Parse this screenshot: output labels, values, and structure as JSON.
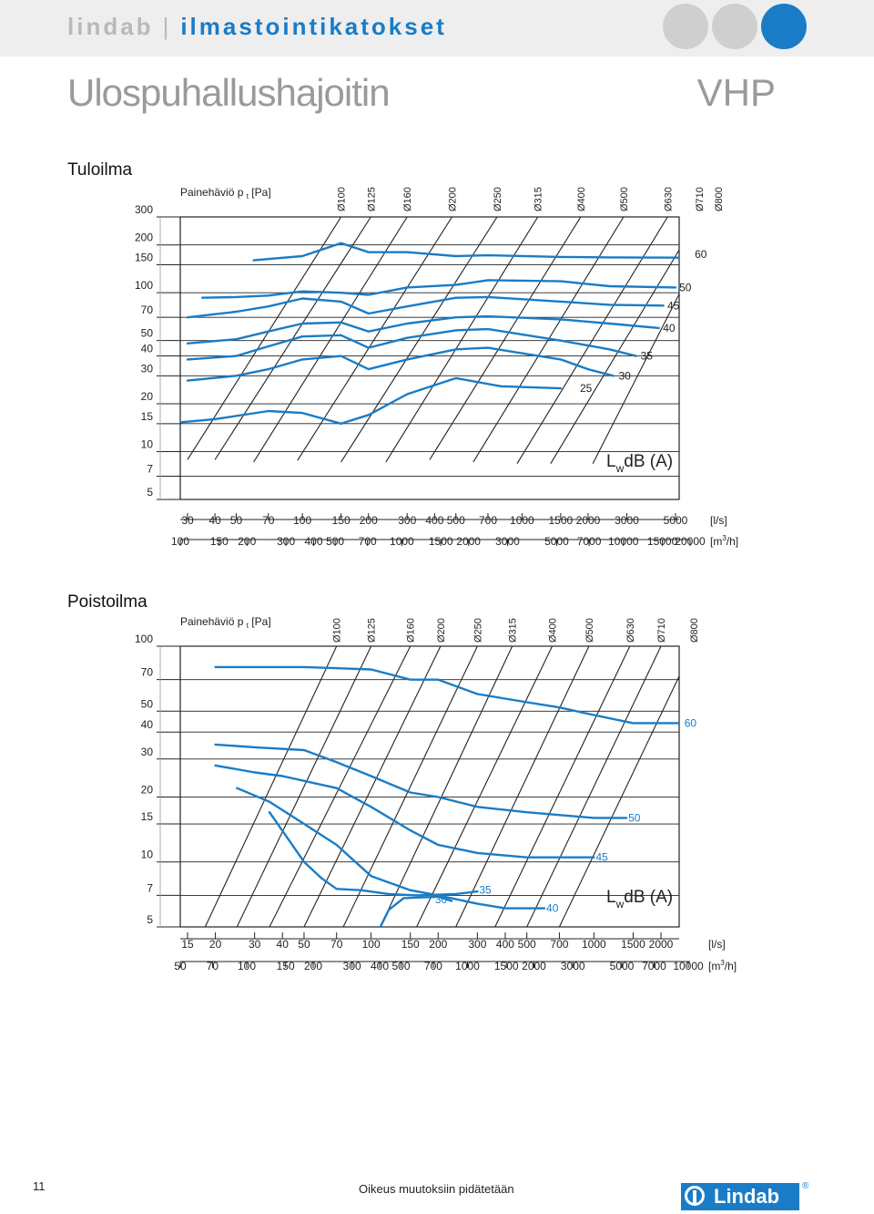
{
  "header": {
    "brand": "lindab",
    "separator": "|",
    "subtitle": "ilmastointikatokset",
    "accent_color": "#1a7cc6",
    "circle_colors": [
      "#cfcfcf",
      "#cfcfcf",
      "#1a7cc6"
    ]
  },
  "page_title": "Ulospuhallushajoitin",
  "model": "VHP",
  "footer": {
    "page_number": "11",
    "disclaimer": "Oikeus muutoksiin pidätetään",
    "logo_text": "Lindab",
    "registered": "®"
  },
  "chart_data": [
    {
      "type": "line",
      "section_title": "Tuloilma",
      "ylabel": "Painehäviö p",
      "ylabel_sub": "t",
      "ylabel_unit": "[Pa]",
      "y_scale": "log",
      "ylim": [
        5,
        300
      ],
      "yticks": [
        5,
        7,
        10,
        15,
        20,
        30,
        40,
        50,
        70,
        100,
        150,
        200,
        300
      ],
      "x_scale": "log",
      "xlim_ls": [
        28,
        6500
      ],
      "xunit1": "[l/s]",
      "xticks_ls": [
        30,
        40,
        50,
        70,
        100,
        150,
        200,
        300,
        400,
        500,
        700,
        1000,
        1500,
        2000,
        3000,
        5000
      ],
      "xunit2_label": "[m",
      "xunit2_sup": "3",
      "xunit2_end": "/h]",
      "xticks_m3h": [
        100,
        150,
        200,
        300,
        400,
        500,
        700,
        1000,
        1500,
        2000,
        3000,
        5000,
        7000,
        10000,
        15000,
        20000
      ],
      "grid": true,
      "sound_label": {
        "main": "L",
        "sub": "w",
        "rest": "dB (A)"
      },
      "sizes": [
        {
          "label": "Ø100",
          "p": [
            [
              30,
              8.9
            ],
            [
              150,
              300
            ]
          ]
        },
        {
          "label": "Ø125",
          "p": [
            [
              40,
              8.9
            ],
            [
              205,
              300
            ]
          ]
        },
        {
          "label": "Ø160",
          "p": [
            [
              60,
              8.6
            ],
            [
              300,
              300
            ]
          ]
        },
        {
          "label": "Ø200",
          "p": [
            [
              95,
              8.8
            ],
            [
              480,
              300
            ]
          ]
        },
        {
          "label": "Ø250",
          "p": [
            [
              150,
              8.6
            ],
            [
              770,
              300
            ]
          ]
        },
        {
          "label": "Ø315",
          "p": [
            [
              240,
              8.6
            ],
            [
              1180,
              300
            ]
          ]
        },
        {
          "label": "Ø400",
          "p": [
            [
              380,
              8.9
            ],
            [
              1850,
              300
            ]
          ]
        },
        {
          "label": "Ø500",
          "p": [
            [
              600,
              8.6
            ],
            [
              2900,
              300
            ]
          ]
        },
        {
          "label": "Ø630",
          "p": [
            [
              950,
              8.4
            ],
            [
              4600,
              300
            ]
          ]
        },
        {
          "label": "Ø710",
          "p": [
            [
              1350,
              8.4
            ],
            [
              6400,
              300
            ]
          ]
        },
        {
          "label": "Ø800",
          "p": [
            [
              2100,
              8.4
            ],
            [
              6500,
              180
            ]
          ]
        }
      ],
      "series": [
        {
          "name": "25",
          "points": [
            [
              28,
              15.3
            ],
            [
              40,
              16.0
            ],
            [
              70,
              18.0
            ],
            [
              100,
              17.5
            ],
            [
              150,
              15.0
            ],
            [
              200,
              17.0
            ],
            [
              300,
              23.0
            ],
            [
              500,
              29.0
            ],
            [
              800,
              25.8
            ],
            [
              1500,
              25.0
            ]
          ],
          "label_at": [
            1800,
            25
          ]
        },
        {
          "name": "30",
          "points": [
            [
              30,
              28.0
            ],
            [
              50,
              30.0
            ],
            [
              70,
              33.0
            ],
            [
              100,
              38.0
            ],
            [
              150,
              40.0
            ],
            [
              200,
              33.0
            ],
            [
              300,
              38.0
            ],
            [
              500,
              44.0
            ],
            [
              700,
              45.0
            ],
            [
              1500,
              38.0
            ],
            [
              2000,
              33.0
            ],
            [
              2600,
              30.0
            ]
          ],
          "label_at": [
            2700,
            30
          ]
        },
        {
          "name": "35",
          "points": [
            [
              30,
              38.0
            ],
            [
              50,
              40.0
            ],
            [
              70,
              46.0
            ],
            [
              100,
              53.0
            ],
            [
              150,
              54.0
            ],
            [
              200,
              45.0
            ],
            [
              300,
              52.0
            ],
            [
              500,
              58.0
            ],
            [
              700,
              59.0
            ],
            [
              1500,
              50.0
            ],
            [
              2500,
              44.0
            ],
            [
              3300,
              40.0
            ]
          ],
          "label_at": [
            3400,
            40
          ]
        },
        {
          "name": "40",
          "points": [
            [
              30,
              48.0
            ],
            [
              50,
              51.0
            ],
            [
              70,
              57.0
            ],
            [
              100,
              64.0
            ],
            [
              150,
              65.0
            ],
            [
              200,
              57.0
            ],
            [
              300,
              64.0
            ],
            [
              500,
              70.0
            ],
            [
              700,
              71.0
            ],
            [
              1500,
              68.0
            ],
            [
              2500,
              64.0
            ],
            [
              4200,
              60.0
            ]
          ],
          "label_at": [
            4300,
            60
          ]
        },
        {
          "name": "45",
          "points": [
            [
              30,
              70.0
            ],
            [
              50,
              76.0
            ],
            [
              70,
              82.0
            ],
            [
              100,
              92.0
            ],
            [
              150,
              88.0
            ],
            [
              200,
              74.0
            ],
            [
              300,
              82.0
            ],
            [
              500,
              93.0
            ],
            [
              700,
              94.0
            ],
            [
              1500,
              88.0
            ],
            [
              2500,
              84.0
            ],
            [
              4400,
              83.0
            ]
          ],
          "label_at": [
            4500,
            83
          ]
        },
        {
          "name": "50",
          "points": [
            [
              35,
              93.0
            ],
            [
              50,
              94.0
            ],
            [
              70,
              96.0
            ],
            [
              100,
              102.0
            ],
            [
              150,
              100.0
            ],
            [
              200,
              97.0
            ],
            [
              300,
              108.0
            ],
            [
              500,
              112.0
            ],
            [
              700,
              120.0
            ],
            [
              1500,
              118.0
            ],
            [
              2500,
              110.0
            ],
            [
              5000,
              108.0
            ]
          ],
          "label_at": [
            5100,
            108
          ]
        },
        {
          "name": "60",
          "points": [
            [
              60,
              160.0
            ],
            [
              100,
              170.0
            ],
            [
              150,
              205.0
            ],
            [
              200,
              180.0
            ],
            [
              300,
              180.0
            ],
            [
              500,
              170.0
            ],
            [
              700,
              172.0
            ],
            [
              1500,
              168.0
            ],
            [
              2500,
              167.0
            ],
            [
              6000,
              166.0
            ]
          ],
          "label_at": [
            6000,
            175
          ]
        }
      ]
    },
    {
      "type": "line",
      "section_title": "Poistoilma",
      "ylabel": "Painehäviö p",
      "ylabel_sub": "t",
      "ylabel_unit": "[Pa]",
      "y_scale": "log",
      "ylim": [
        5,
        100
      ],
      "yticks": [
        5,
        7,
        10,
        15,
        20,
        30,
        40,
        50,
        70,
        100
      ],
      "x_scale": "log",
      "xlim_ls": [
        14,
        3300
      ],
      "xunit1": "[l/s]",
      "xticks_ls": [
        15,
        20,
        30,
        40,
        50,
        70,
        100,
        150,
        200,
        300,
        400,
        500,
        700,
        1000,
        1500,
        2000
      ],
      "xunit2_label": "[m",
      "xunit2_sup": "3",
      "xunit2_end": "/h]",
      "xticks_m3h": [
        50,
        70,
        100,
        150,
        200,
        300,
        400,
        500,
        700,
        1000,
        1500,
        2000,
        3000,
        5000,
        7000,
        10000
      ],
      "grid": true,
      "sound_label": {
        "main": "L",
        "sub": "w",
        "rest": "dB (A)"
      },
      "sizes": [
        {
          "label": "Ø100",
          "p": [
            [
              18,
              5.0
            ],
            [
              70,
              100
            ]
          ]
        },
        {
          "label": "Ø125",
          "p": [
            [
              25,
              5.0
            ],
            [
              100,
              100
            ]
          ]
        },
        {
          "label": "Ø160",
          "p": [
            [
              35,
              5.0
            ],
            [
              150,
              100
            ]
          ]
        },
        {
          "label": "Ø200",
          "p": [
            [
              50,
              5.0
            ],
            [
              205,
              100
            ]
          ]
        },
        {
          "label": "Ø250",
          "p": [
            [
              75,
              5.0
            ],
            [
              300,
              100
            ]
          ]
        },
        {
          "label": "Ø315",
          "p": [
            [
              110,
              5.0
            ],
            [
              430,
              100
            ]
          ]
        },
        {
          "label": "Ø400",
          "p": [
            [
              160,
              5.0
            ],
            [
              650,
              100
            ]
          ]
        },
        {
          "label": "Ø500",
          "p": [
            [
              240,
              5.0
            ],
            [
              950,
              100
            ]
          ]
        },
        {
          "label": "Ø630",
          "p": [
            [
              360,
              5.0
            ],
            [
              1450,
              100
            ]
          ]
        },
        {
          "label": "Ø710",
          "p": [
            [
              500,
              5.0
            ],
            [
              2000,
              100
            ]
          ]
        },
        {
          "label": "Ø800",
          "p": [
            [
              700,
              5.0
            ],
            [
              2800,
              100
            ]
          ]
        }
      ],
      "series": [
        {
          "name": "30",
          "points": [
            [
              110,
              5.0
            ],
            [
              120,
              6.0
            ],
            [
              140,
              6.8
            ],
            [
              200,
              6.9
            ],
            [
              230,
              6.6
            ]
          ],
          "label_at": [
            190,
            6.7
          ]
        },
        {
          "name": "35",
          "points": [
            [
              35,
              17.0
            ],
            [
              50,
              10.0
            ],
            [
              60,
              8.4
            ],
            [
              70,
              7.5
            ],
            [
              90,
              7.4
            ],
            [
              120,
              7.1
            ],
            [
              160,
              7.0
            ],
            [
              240,
              7.1
            ],
            [
              300,
              7.3
            ]
          ],
          "label_at": [
            300,
            7.4
          ]
        },
        {
          "name": "40",
          "points": [
            [
              25,
              22.0
            ],
            [
              35,
              19.0
            ],
            [
              50,
              15.0
            ],
            [
              70,
              12.0
            ],
            [
              100,
              8.6
            ],
            [
              150,
              7.4
            ],
            [
              200,
              7.0
            ],
            [
              300,
              6.4
            ],
            [
              400,
              6.1
            ],
            [
              600,
              6.1
            ]
          ],
          "label_at": [
            600,
            6.1
          ]
        },
        {
          "name": "45",
          "points": [
            [
              20,
              28.0
            ],
            [
              30,
              26.0
            ],
            [
              40,
              25.0
            ],
            [
              70,
              22.0
            ],
            [
              100,
              18.0
            ],
            [
              150,
              14.0
            ],
            [
              200,
              12.0
            ],
            [
              300,
              11.0
            ],
            [
              500,
              10.5
            ],
            [
              1000,
              10.5
            ]
          ],
          "label_at": [
            1000,
            10.5
          ]
        },
        {
          "name": "50",
          "points": [
            [
              20,
              35.0
            ],
            [
              30,
              34.0
            ],
            [
              50,
              33.0
            ],
            [
              70,
              29.0
            ],
            [
              100,
              25.0
            ],
            [
              150,
              21.0
            ],
            [
              200,
              20.0
            ],
            [
              300,
              18.0
            ],
            [
              500,
              17.0
            ],
            [
              1000,
              16.0
            ],
            [
              1400,
              16.0
            ]
          ],
          "label_at": [
            1400,
            16.0
          ]
        },
        {
          "name": "60",
          "points": [
            [
              20,
              80.0
            ],
            [
              50,
              80.0
            ],
            [
              100,
              78.0
            ],
            [
              150,
              70.0
            ],
            [
              200,
              70.0
            ],
            [
              300,
              60.0
            ],
            [
              500,
              55.0
            ],
            [
              700,
              52.0
            ],
            [
              1000,
              48.0
            ],
            [
              1500,
              44.0
            ],
            [
              2500,
              44.0
            ]
          ],
          "label_at": [
            2500,
            44.0
          ]
        }
      ]
    }
  ]
}
